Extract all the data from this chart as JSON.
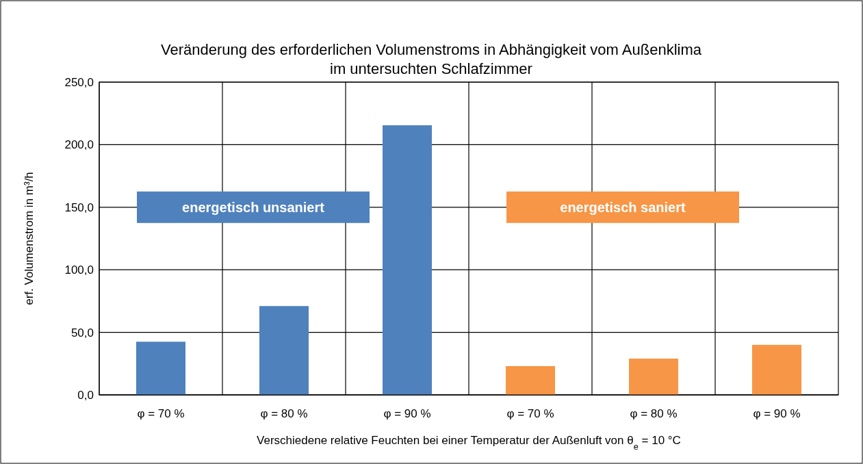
{
  "chart_data": {
    "type": "bar",
    "title": "Veränderung des erforderlichen Volumenstroms in Abhängigkeit vom Außenklima\nim untersuchten Schlafzimmer",
    "xlabel": "Verschiedene relative Feuchten bei einer Temperatur der Außenluft von θ$_{e}$ = 10 °C",
    "ylabel": "erf. Volumenstrom in m³/h",
    "categories": [
      "φ = 70 %",
      "φ = 80 %",
      "φ = 90 %",
      "φ = 70 %",
      "φ = 80 %",
      "φ = 90 %"
    ],
    "series": [
      {
        "name": "energetisch unsaniert",
        "color": "#4f81bd",
        "values": [
          42.5,
          71,
          215.5,
          null,
          null,
          null
        ]
      },
      {
        "name": "energetisch saniert",
        "color": "#f79646",
        "values": [
          null,
          null,
          null,
          23,
          29,
          40
        ]
      }
    ],
    "ylim": [
      0,
      250
    ],
    "yticks": [
      {
        "value": 0,
        "label": "0,0"
      },
      {
        "value": 50,
        "label": "50,0"
      },
      {
        "value": 100,
        "label": "100,0"
      },
      {
        "value": 150,
        "label": "150,0"
      },
      {
        "value": 200,
        "label": "200,0"
      },
      {
        "value": 250,
        "label": "250,0"
      }
    ],
    "grid": true
  }
}
